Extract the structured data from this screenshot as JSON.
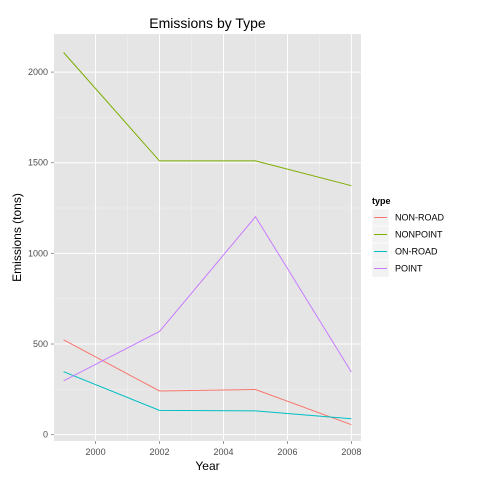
{
  "chart_data": {
    "type": "line",
    "title": "Emissions by Type",
    "xlabel": "Year",
    "ylabel": "Emissions (tons)",
    "x": [
      1999,
      2002,
      2005,
      2008
    ],
    "xlim": [
      1998.7,
      2008.3
    ],
    "ylim": [
      -35,
      2210
    ],
    "xticks": [
      2000,
      2002,
      2004,
      2006,
      2008
    ],
    "yticks": [
      0,
      500,
      1000,
      1500,
      2000
    ],
    "grid": true,
    "legend": {
      "title": "type",
      "placement": "right"
    },
    "series": [
      {
        "name": "NON-ROAD",
        "color": "#F8766D",
        "values": [
          523,
          241,
          249,
          55
        ]
      },
      {
        "name": "NONPOINT",
        "color": "#7CAE00",
        "values": [
          2108,
          1510,
          1510,
          1373
        ]
      },
      {
        "name": "ON-ROAD",
        "color": "#00BFC4",
        "values": [
          347,
          134,
          131,
          88
        ]
      },
      {
        "name": "POINT",
        "color": "#C77CFF",
        "values": [
          297,
          569,
          1202,
          345
        ]
      }
    ]
  }
}
